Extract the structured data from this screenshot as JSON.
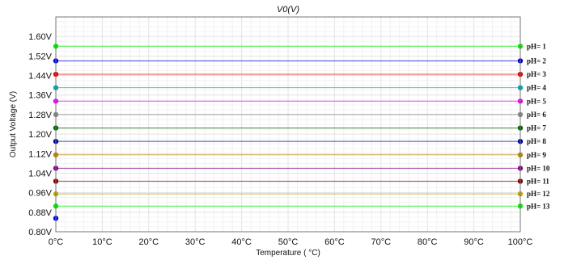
{
  "chart_data": {
    "type": "line",
    "title": "V0(V)",
    "xlabel": "Temperature ( °C)",
    "ylabel": "Output Voltage (V)",
    "x": [
      0,
      100
    ],
    "xlim": [
      0,
      100
    ],
    "ylim": [
      0.8,
      1.68
    ],
    "x_tick_values": [
      0,
      10,
      20,
      30,
      40,
      50,
      60,
      70,
      80,
      90,
      100
    ],
    "x_tick_labels": [
      "0°C",
      "10°C",
      "20°C",
      "30°C",
      "40°C",
      "50°C",
      "60°C",
      "70°C",
      "80°C",
      "90°C",
      "100°C"
    ],
    "y_tick_values": [
      0.8,
      0.88,
      0.96,
      1.04,
      1.12,
      1.2,
      1.28,
      1.36,
      1.44,
      1.52,
      1.6
    ],
    "y_tick_labels": [
      "0.80V",
      "0.88V",
      "0.96V",
      "1.04V",
      "1.12V",
      "1.20V",
      "1.28V",
      "1.36V",
      "1.44V",
      "1.52V",
      "1.60V"
    ],
    "grid": true,
    "series": [
      {
        "name": "pH= 1",
        "color": "#00ee00",
        "values": [
          1.56,
          1.56
        ]
      },
      {
        "name": "pH= 2",
        "color": "#0000dd",
        "values": [
          1.5,
          1.5
        ]
      },
      {
        "name": "pH= 3",
        "color": "#ee0000",
        "values": [
          1.445,
          1.445
        ]
      },
      {
        "name": "pH= 4",
        "color": "#00aaaa",
        "values": [
          1.39,
          1.39
        ]
      },
      {
        "name": "pH= 5",
        "color": "#ee00ee",
        "values": [
          1.335,
          1.335
        ]
      },
      {
        "name": "pH= 6",
        "color": "#888888",
        "values": [
          1.28,
          1.28
        ]
      },
      {
        "name": "pH= 7",
        "color": "#006600",
        "values": [
          1.225,
          1.225
        ]
      },
      {
        "name": "pH= 8",
        "color": "#0000aa",
        "values": [
          1.17,
          1.17
        ]
      },
      {
        "name": "pH= 9",
        "color": "#bb8800",
        "values": [
          1.115,
          1.115
        ]
      },
      {
        "name": "pH= 10",
        "color": "#880088",
        "values": [
          1.06,
          1.06
        ]
      },
      {
        "name": "pH= 11",
        "color": "#880000",
        "values": [
          1.007,
          1.007
        ]
      },
      {
        "name": "pH= 12",
        "color": "#bbaa00",
        "values": [
          0.955,
          0.955
        ]
      },
      {
        "name": "pH= 13",
        "color": "#00ee00",
        "values": [
          0.905,
          0.905
        ]
      }
    ],
    "extra_points": [
      {
        "x": 0,
        "y": 0.855,
        "color": "#0000dd"
      }
    ]
  }
}
